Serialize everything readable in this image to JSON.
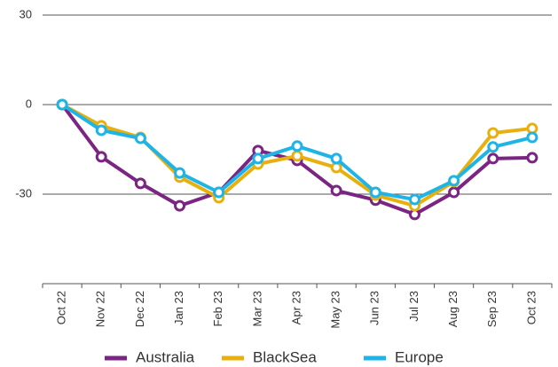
{
  "chart_data": {
    "type": "line",
    "categories": [
      "Oct 22",
      "Nov 22",
      "Dec 22",
      "Jan 23",
      "Feb 23",
      "Mar 23",
      "Apr 23",
      "May 23",
      "Jun 23",
      "Jul 23",
      "Aug 23",
      "Sep 23",
      "Oct 23"
    ],
    "series": [
      {
        "name": "Australia",
        "color": "#7b2582",
        "values": [
          0,
          -17.5,
          -26.4,
          -33.9,
          -29.4,
          -15.4,
          -18.7,
          -28.8,
          -32,
          -36.8,
          -29.4,
          -18.1,
          -17.8
        ]
      },
      {
        "name": "BlackSea",
        "color": "#e8b00f",
        "values": [
          0,
          -7.1,
          -11,
          -24.3,
          -31.2,
          -19.9,
          -17.2,
          -21.1,
          -30.3,
          -33.9,
          -25.8,
          -9.5,
          -8
        ]
      },
      {
        "name": "Europe",
        "color": "#1fb4e6",
        "values": [
          0,
          -8.6,
          -11.3,
          -22.9,
          -29.4,
          -18.1,
          -13.9,
          -18.1,
          -29.4,
          -31.8,
          -25.5,
          -14.2,
          -11
        ]
      }
    ],
    "ylim": [
      -60,
      30
    ],
    "yticks": [
      30,
      0,
      -30
    ],
    "grid": true,
    "legend": "bottom"
  }
}
